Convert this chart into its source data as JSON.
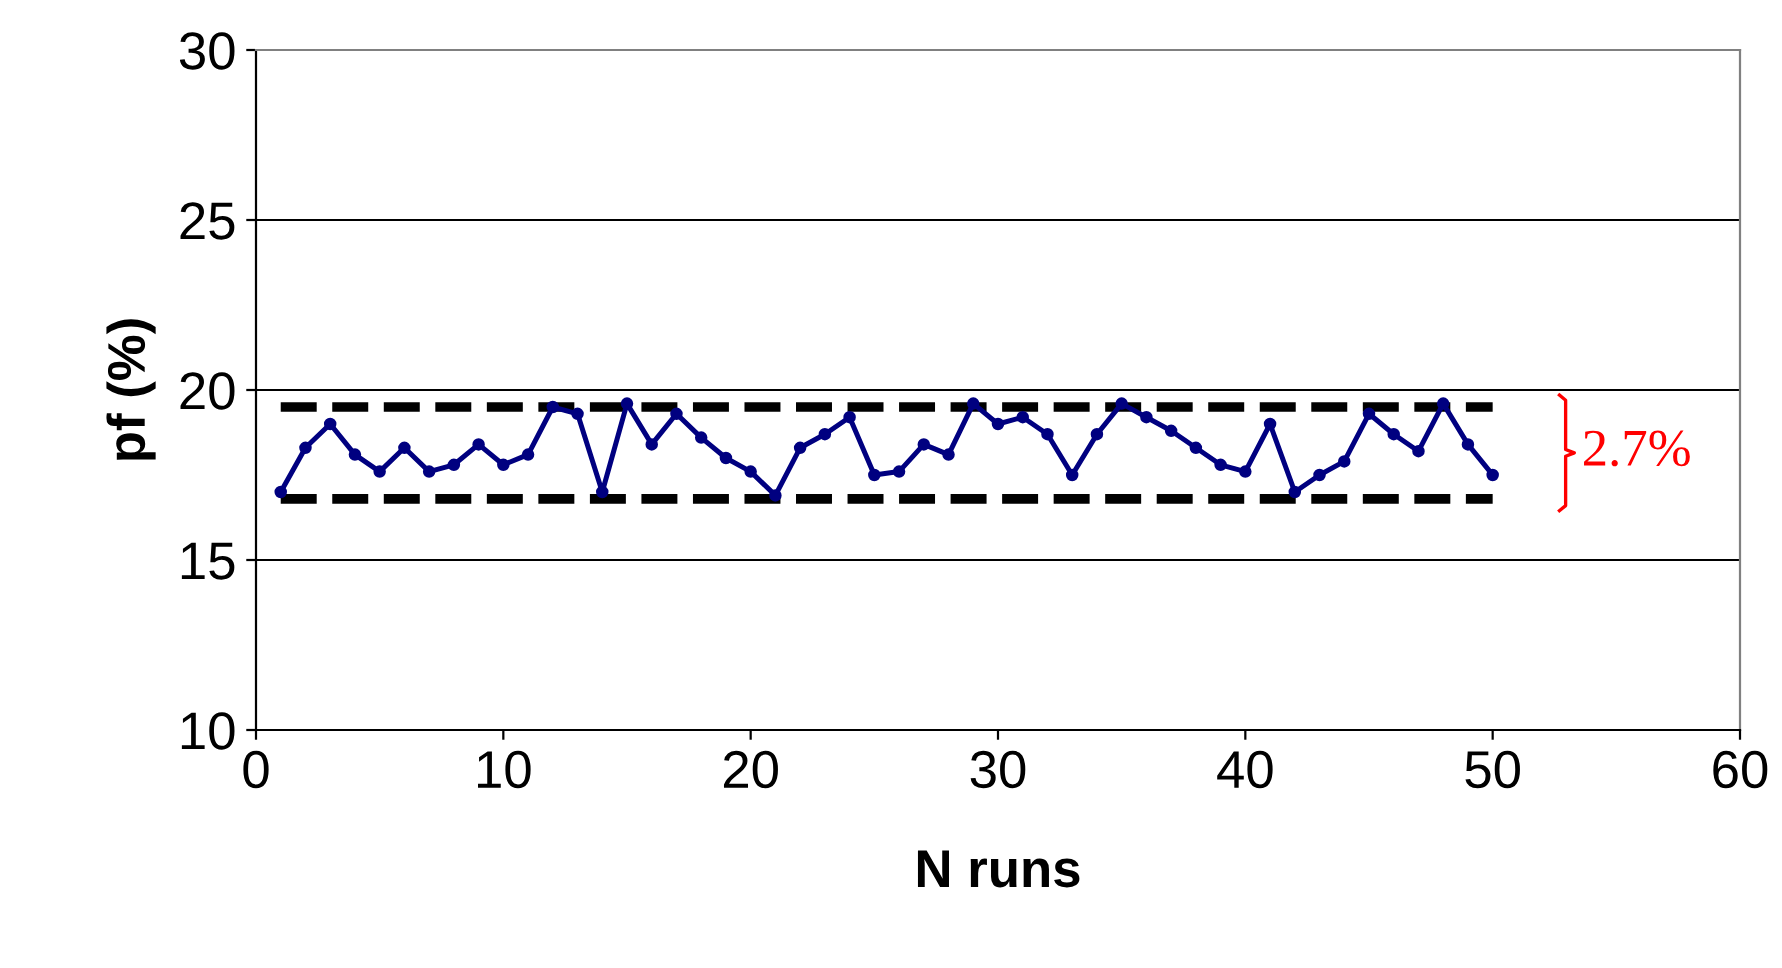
{
  "chart_data": {
    "type": "line",
    "xlabel": "N runs",
    "ylabel": "pf (%)",
    "x": [
      1,
      2,
      3,
      4,
      5,
      6,
      7,
      8,
      9,
      10,
      11,
      12,
      13,
      14,
      15,
      16,
      17,
      18,
      19,
      20,
      21,
      22,
      23,
      24,
      25,
      26,
      27,
      28,
      29,
      30,
      31,
      32,
      33,
      34,
      35,
      36,
      37,
      38,
      39,
      40,
      41,
      42,
      43,
      44,
      45,
      46,
      47,
      48,
      49,
      50
    ],
    "series": [
      {
        "color": "#000080",
        "values": [
          17.0,
          18.3,
          19.0,
          18.1,
          17.6,
          18.3,
          17.6,
          17.8,
          18.4,
          17.8,
          18.1,
          19.5,
          19.3,
          17.0,
          19.6,
          18.4,
          19.3,
          18.6,
          18.0,
          17.6,
          16.9,
          18.3,
          18.7,
          19.2,
          17.5,
          17.6,
          18.4,
          18.1,
          19.6,
          19.0,
          19.2,
          18.7,
          17.5,
          18.7,
          19.6,
          19.2,
          18.8,
          18.3,
          17.8,
          17.6,
          19.0,
          17.0,
          17.5,
          17.9,
          19.3,
          18.7,
          18.2,
          19.6,
          18.4,
          17.5
        ]
      }
    ],
    "marker": "circle",
    "line_style": "solid",
    "xlim": [
      0,
      60
    ],
    "xticks": [
      0,
      10,
      20,
      30,
      40,
      50,
      60
    ],
    "ylim": [
      10,
      30
    ],
    "yticks": [
      10,
      15,
      20,
      25,
      30
    ],
    "grid": "y",
    "legend": false,
    "ref_lines": [
      {
        "axis": "y",
        "value": 19.5,
        "color": "#000000",
        "line_style": "dashed"
      },
      {
        "axis": "y",
        "value": 16.8,
        "color": "#000000",
        "line_style": "dashed"
      }
    ],
    "annotations": [
      "2.7%"
    ]
  }
}
